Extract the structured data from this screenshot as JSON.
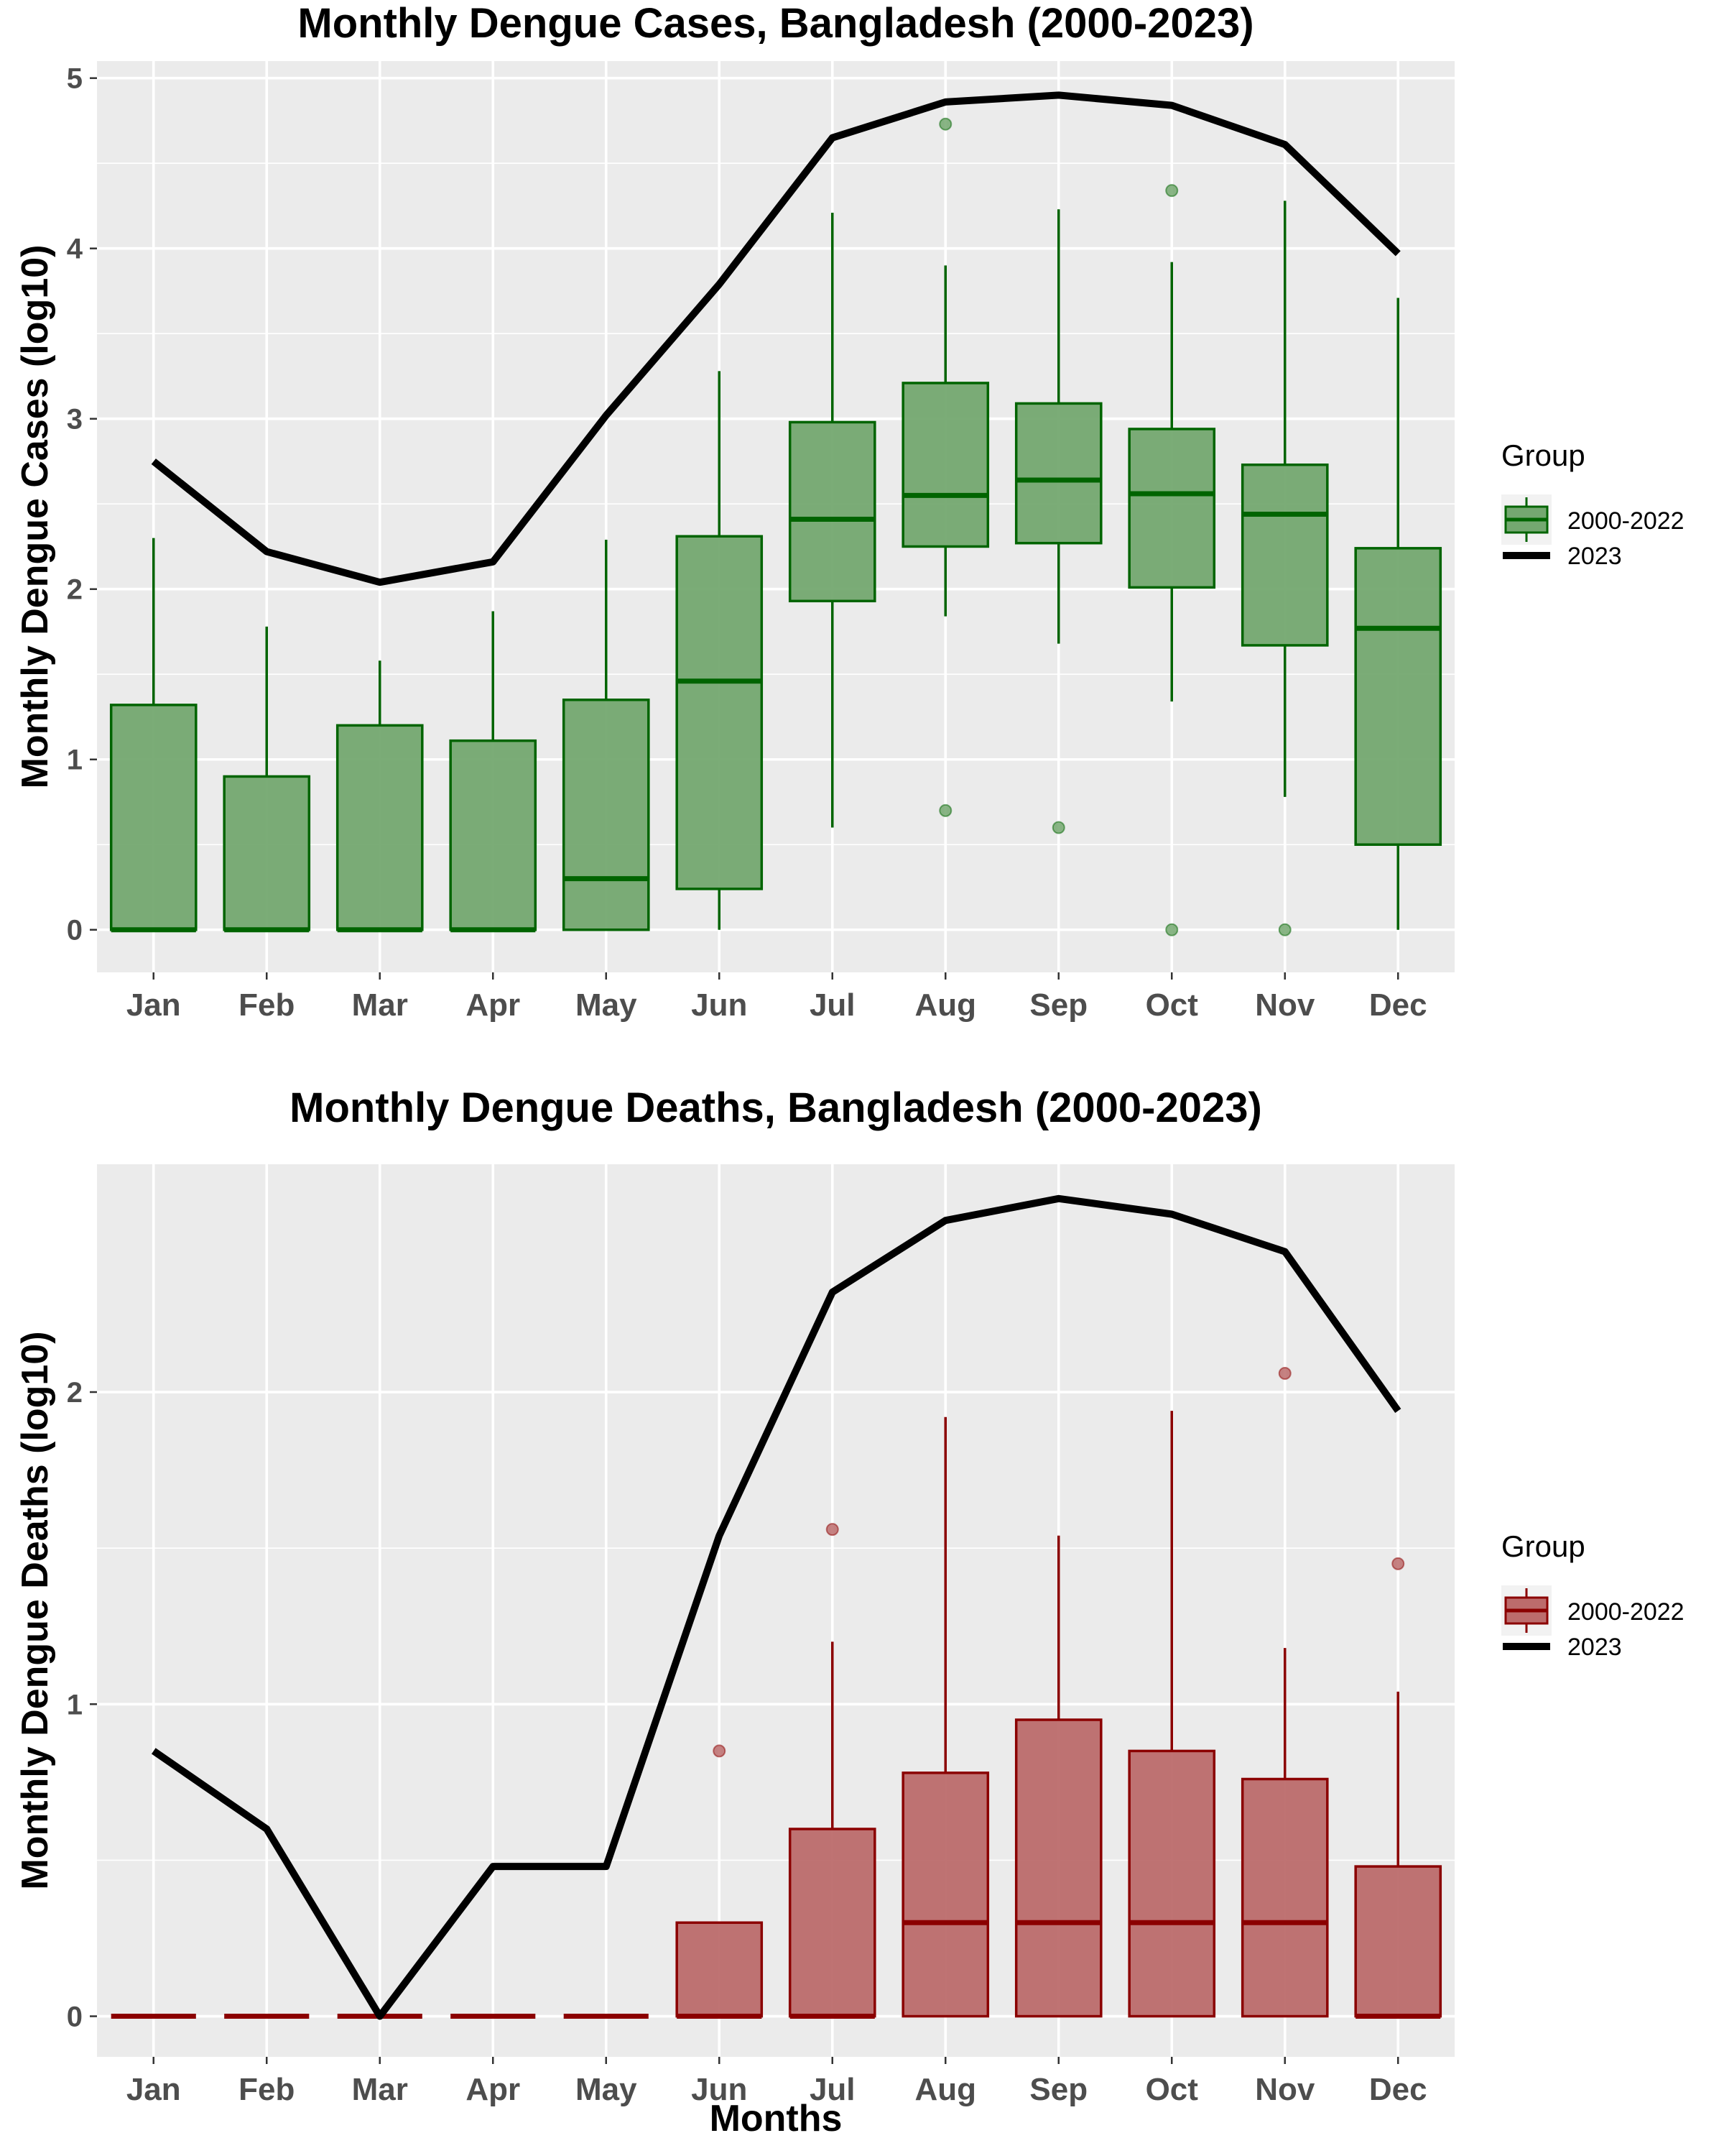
{
  "chart_data": [
    {
      "type": "box",
      "title": "Monthly Dengue Cases, Bangladesh (2000-2023)",
      "xlabel": "",
      "ylabel": "Monthly Dengue Cases (log10)",
      "categories": [
        "Jan",
        "Feb",
        "Mar",
        "Apr",
        "May",
        "Jun",
        "Jul",
        "Aug",
        "Sep",
        "Oct",
        "Nov",
        "Dec"
      ],
      "ylim": [
        -0.25,
        5.1
      ],
      "yticks": [
        0,
        1,
        2,
        3,
        4,
        5
      ],
      "grid": true,
      "legend": {
        "title": "Group",
        "position": "right",
        "entries": [
          {
            "label": "2000-2022",
            "kind": "box"
          },
          {
            "label": "2023",
            "kind": "line"
          }
        ]
      },
      "colors": {
        "box_fill": "#74a870",
        "box_stroke": "#006400",
        "line": "#000000",
        "panel": "#ebebeb"
      },
      "boxes": [
        {
          "min": 0,
          "q1": 0,
          "median": 0,
          "q3": 1.32,
          "max": 2.3,
          "outliers": []
        },
        {
          "min": 0,
          "q1": 0,
          "median": 0,
          "q3": 0.9,
          "max": 1.78,
          "outliers": []
        },
        {
          "min": 0,
          "q1": 0,
          "median": 0,
          "q3": 1.2,
          "max": 1.58,
          "outliers": []
        },
        {
          "min": 0,
          "q1": 0,
          "median": 0,
          "q3": 1.11,
          "max": 1.87,
          "outliers": []
        },
        {
          "min": 0,
          "q1": 0,
          "median": 0.3,
          "q3": 1.35,
          "max": 2.29,
          "outliers": []
        },
        {
          "min": 0,
          "q1": 0.24,
          "median": 1.46,
          "q3": 2.31,
          "max": 3.28,
          "outliers": []
        },
        {
          "min": 0.6,
          "q1": 1.93,
          "median": 2.41,
          "q3": 2.98,
          "max": 4.21,
          "outliers": []
        },
        {
          "min": 1.84,
          "q1": 2.25,
          "median": 2.55,
          "q3": 3.21,
          "max": 3.9,
          "outliers": [
            4.73,
            0.7
          ]
        },
        {
          "min": 1.68,
          "q1": 2.27,
          "median": 2.64,
          "q3": 3.09,
          "max": 4.23,
          "outliers": [
            0.6
          ]
        },
        {
          "min": 1.34,
          "q1": 2.01,
          "median": 2.56,
          "q3": 2.94,
          "max": 3.92,
          "outliers": [
            4.34,
            0
          ]
        },
        {
          "min": 0.78,
          "q1": 1.67,
          "median": 2.44,
          "q3": 2.73,
          "max": 4.28,
          "outliers": [
            0
          ]
        },
        {
          "min": 0,
          "q1": 0.5,
          "median": 1.77,
          "q3": 2.24,
          "max": 3.71,
          "outliers": []
        }
      ],
      "series": [
        {
          "name": "2023",
          "values": [
            2.75,
            2.22,
            2.04,
            2.16,
            3.02,
            3.79,
            4.65,
            4.86,
            4.9,
            4.84,
            4.61,
            3.97
          ]
        }
      ]
    },
    {
      "type": "box",
      "title": "Monthly Dengue Deaths, Bangladesh (2000-2023)",
      "xlabel": "Months",
      "ylabel": "Monthly Dengue Deaths (log10)",
      "categories": [
        "Jan",
        "Feb",
        "Mar",
        "Apr",
        "May",
        "Jun",
        "Jul",
        "Aug",
        "Sep",
        "Oct",
        "Nov",
        "Dec"
      ],
      "ylim": [
        -0.13,
        2.73
      ],
      "yticks": [
        0,
        1,
        2
      ],
      "grid": true,
      "legend": {
        "title": "Group",
        "position": "right",
        "entries": [
          {
            "label": "2000-2022",
            "kind": "box"
          },
          {
            "label": "2023",
            "kind": "line"
          }
        ]
      },
      "colors": {
        "box_fill": "#bc6c6c",
        "box_stroke": "#8b0000",
        "line": "#000000",
        "panel": "#ebebeb"
      },
      "boxes": [
        {
          "min": 0,
          "q1": 0,
          "median": 0,
          "q3": 0,
          "max": 0,
          "outliers": []
        },
        {
          "min": 0,
          "q1": 0,
          "median": 0,
          "q3": 0,
          "max": 0,
          "outliers": []
        },
        {
          "min": 0,
          "q1": 0,
          "median": 0,
          "q3": 0,
          "max": 0,
          "outliers": []
        },
        {
          "min": 0,
          "q1": 0,
          "median": 0,
          "q3": 0,
          "max": 0,
          "outliers": []
        },
        {
          "min": 0,
          "q1": 0,
          "median": 0,
          "q3": 0,
          "max": 0,
          "outliers": []
        },
        {
          "min": 0,
          "q1": 0,
          "median": 0,
          "q3": 0.3,
          "max": 0.3,
          "outliers": [
            0.85
          ]
        },
        {
          "min": 0,
          "q1": 0,
          "median": 0,
          "q3": 0.6,
          "max": 1.2,
          "outliers": [
            1.56
          ]
        },
        {
          "min": 0,
          "q1": 0,
          "median": 0.3,
          "q3": 0.78,
          "max": 1.92,
          "outliers": []
        },
        {
          "min": 0,
          "q1": 0,
          "median": 0.3,
          "q3": 0.95,
          "max": 1.54,
          "outliers": []
        },
        {
          "min": 0,
          "q1": 0,
          "median": 0.3,
          "q3": 0.85,
          "max": 1.94,
          "outliers": []
        },
        {
          "min": 0,
          "q1": 0,
          "median": 0.3,
          "q3": 0.76,
          "max": 1.18,
          "outliers": [
            2.06
          ]
        },
        {
          "min": 0,
          "q1": 0,
          "median": 0,
          "q3": 0.48,
          "max": 1.04,
          "outliers": [
            1.45
          ]
        }
      ],
      "series": [
        {
          "name": "2023",
          "values": [
            0.85,
            0.6,
            0,
            0.48,
            0.48,
            1.54,
            2.32,
            2.55,
            2.62,
            2.57,
            2.45,
            1.94
          ]
        }
      ]
    }
  ]
}
